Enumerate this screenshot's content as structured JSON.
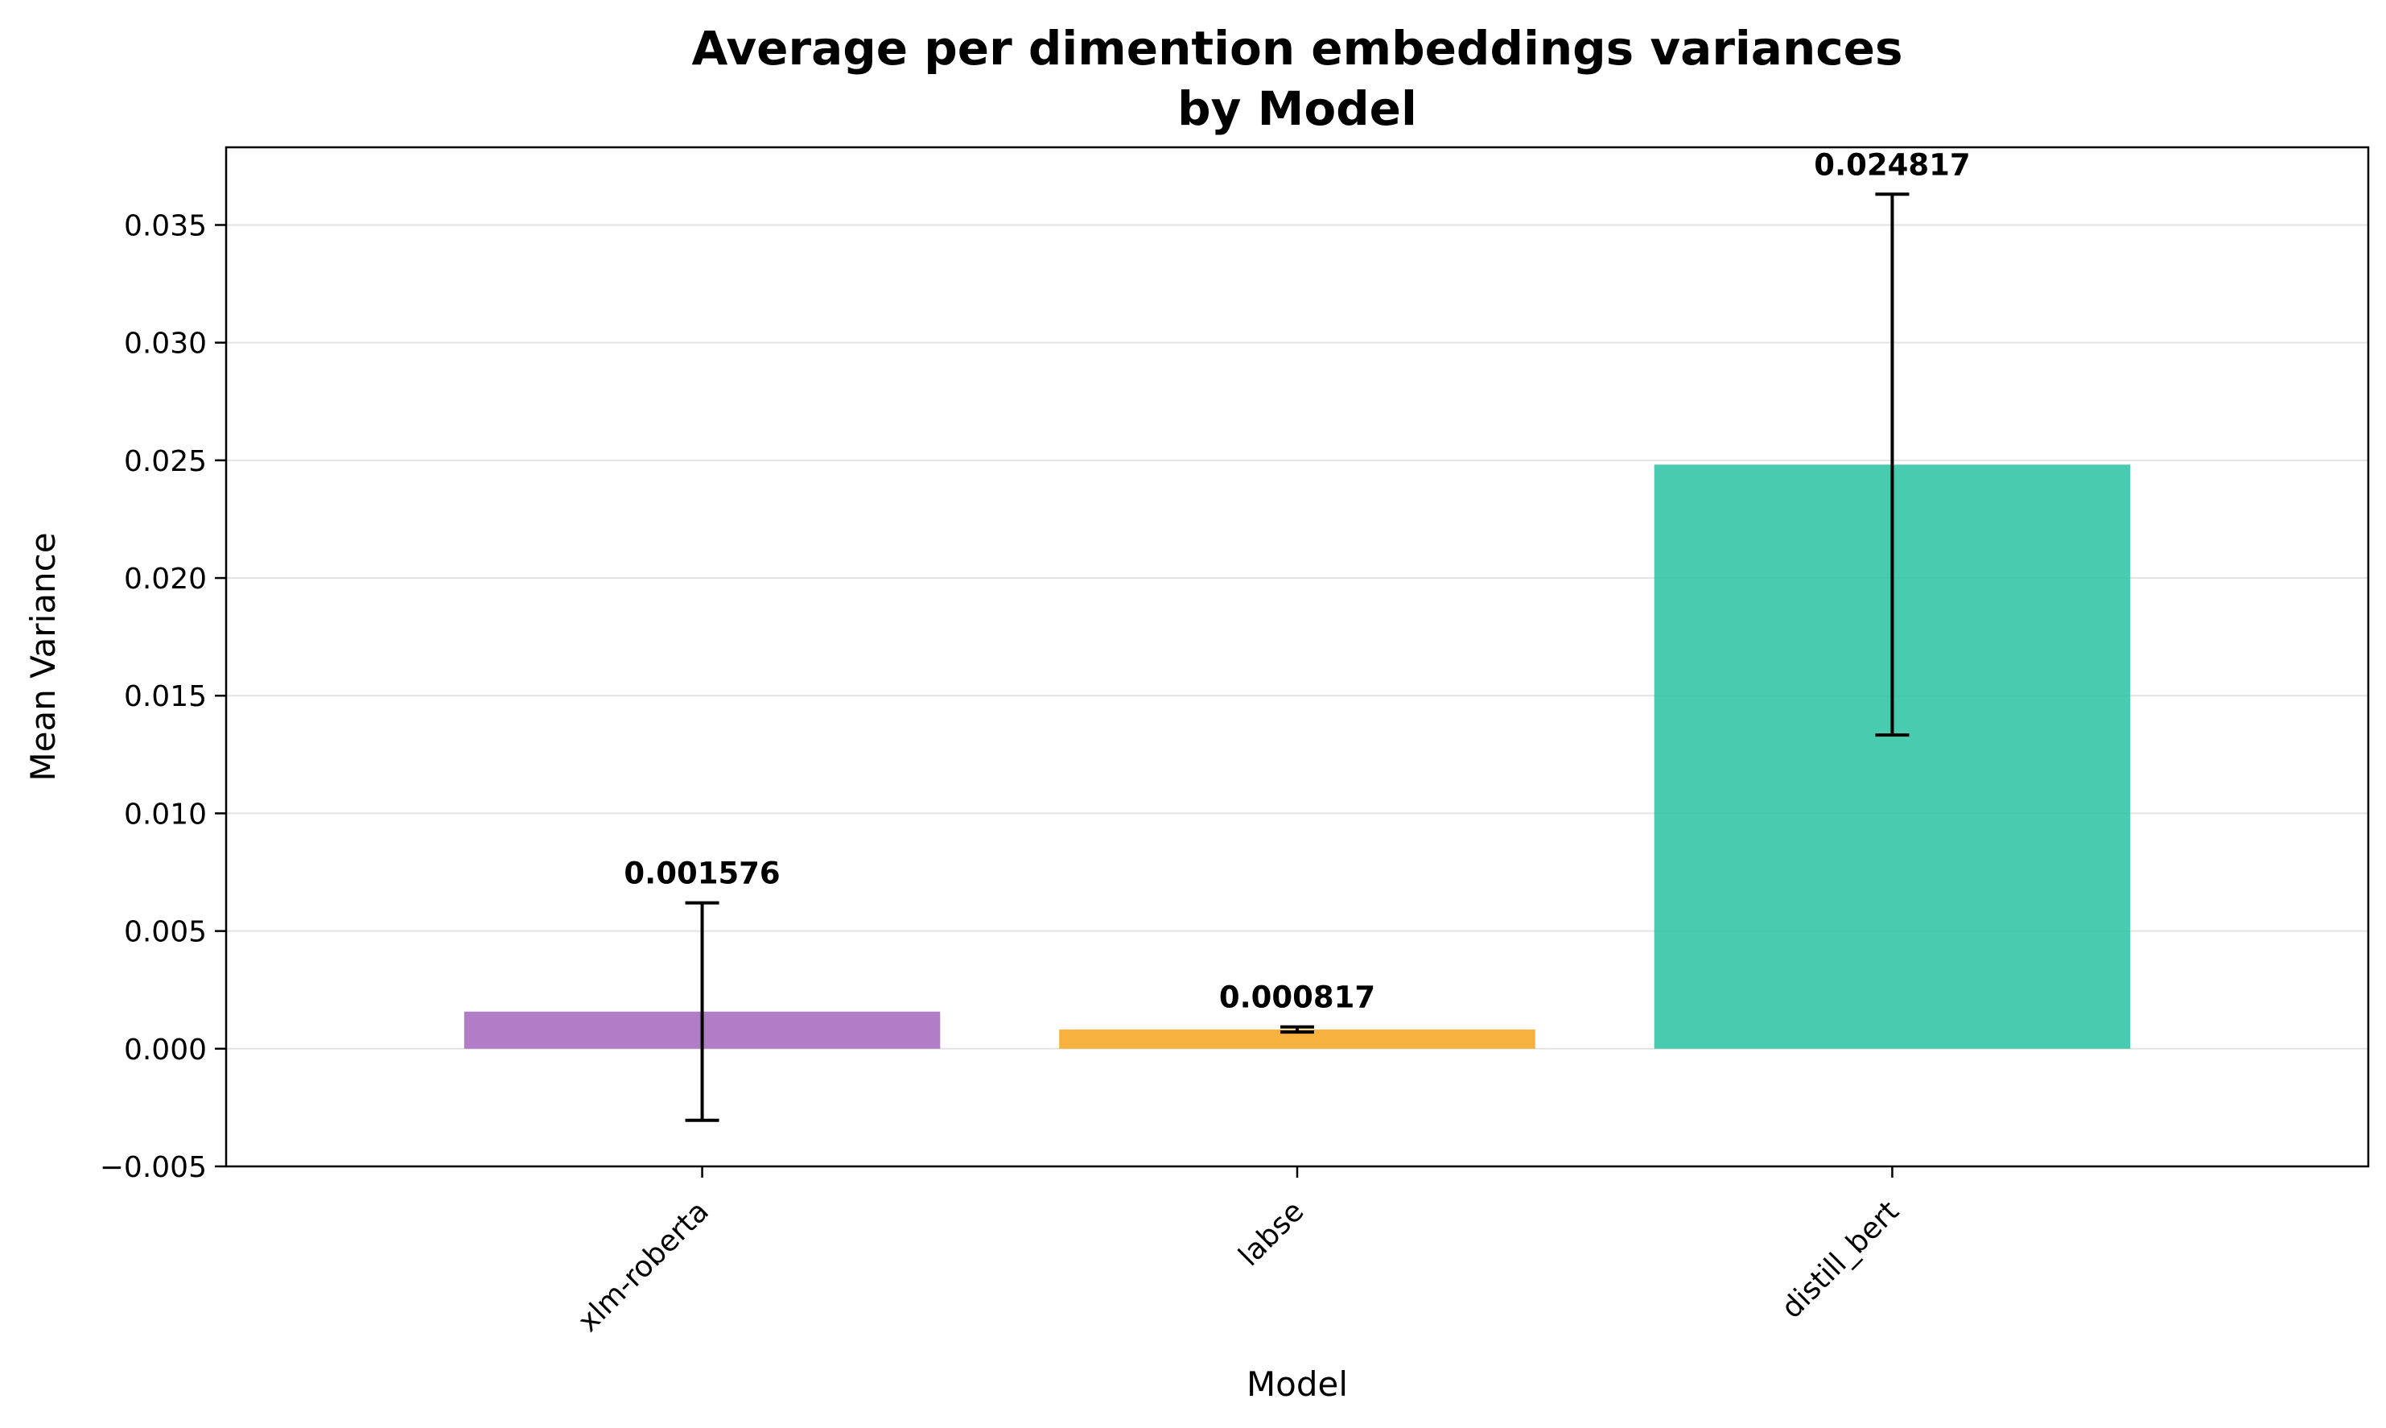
{
  "chart_data": {
    "type": "bar",
    "title_lines": [
      "Average per dimention embeddings variances",
      "by Model"
    ],
    "xlabel": "Model",
    "ylabel": "Mean Variance",
    "categories": [
      "xlm-roberta",
      "labse",
      "distill_bert"
    ],
    "values": [
      0.001576,
      0.000817,
      0.024817
    ],
    "value_labels": [
      "0.001576",
      "0.000817",
      "0.024817"
    ],
    "errors": [
      0.00462,
      0.00011,
      0.01149
    ],
    "colors": [
      "#a66bbf",
      "#f5a623",
      "#2fc4a3"
    ],
    "ylim": [
      -0.005,
      0.0383
    ],
    "yticks": [
      -0.005,
      0,
      0.005,
      0.01,
      0.015,
      0.02,
      0.025,
      0.03,
      0.035
    ],
    "ytick_labels": [
      "−0.005",
      "0.000",
      "0.005",
      "0.010",
      "0.015",
      "0.020",
      "0.025",
      "0.030",
      "0.035"
    ],
    "grid": "horizontal",
    "legend": "none"
  }
}
